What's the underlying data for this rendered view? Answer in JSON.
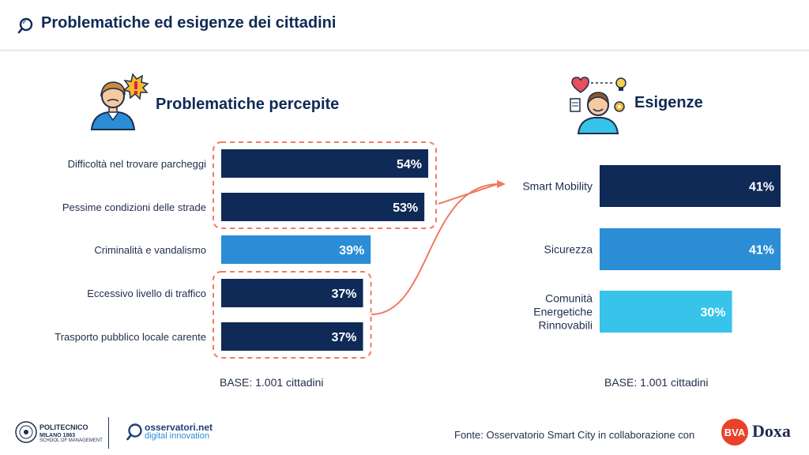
{
  "header": {
    "title": "Problematiche ed esigenze dei cittadini"
  },
  "sections": {
    "left_title": "Problematiche percepite",
    "right_title": "Esigenze",
    "left_base": "BASE: 1.001 cittadini",
    "right_base": "BASE: 1.001 cittadini"
  },
  "footer": {
    "source": "Fonte: Osservatorio Smart City in collaborazione con",
    "polimi_name": "POLITECNICO",
    "polimi_sub": "MILANO 1863",
    "polimi_school": "SCHOOL OF MANAGEMENT",
    "osservatori_name": "osservatori.net",
    "osservatori_sub": "digital innovation",
    "bva_label": "BVA",
    "doxa_label": "Doxa"
  },
  "colors": {
    "dark": "#0f2a56",
    "mid": "#2b8dd6",
    "light": "#37c3ea",
    "highlight": "#f07a63"
  },
  "chart_data": [
    {
      "type": "bar",
      "orientation": "horizontal",
      "categories": [
        "Difficoltà nel trovare parcheggi",
        "Pessime condizioni delle strade",
        "Criminalità e vandalismo",
        "Eccessivo livello di traffico",
        "Trasporto pubblico locale carente"
      ],
      "values": [
        54,
        53,
        39,
        37,
        37
      ],
      "labels": [
        "54%",
        "53%",
        "39%",
        "37%",
        "37%"
      ],
      "colors": [
        "#0f2a56",
        "#0f2a56",
        "#2b8dd6",
        "#0f2a56",
        "#0f2a56"
      ],
      "highlight_groups": [
        [
          0,
          1
        ],
        [
          3,
          4
        ]
      ],
      "xlim": [
        0,
        54
      ],
      "grid": false
    },
    {
      "type": "bar",
      "orientation": "horizontal",
      "categories": [
        "Smart Mobility",
        "Sicurezza",
        "Comunità Energetiche Rinnovabili"
      ],
      "category_lines": [
        [
          "Smart Mobility"
        ],
        [
          "Sicurezza"
        ],
        [
          "Comunità",
          "Energetiche",
          "Rinnovabili"
        ]
      ],
      "values": [
        41,
        41,
        30
      ],
      "labels": [
        "41%",
        "41%",
        "30%"
      ],
      "colors": [
        "#0f2a56",
        "#2b8dd6",
        "#37c3ea"
      ],
      "xlim": [
        0,
        41
      ],
      "grid": false
    }
  ]
}
